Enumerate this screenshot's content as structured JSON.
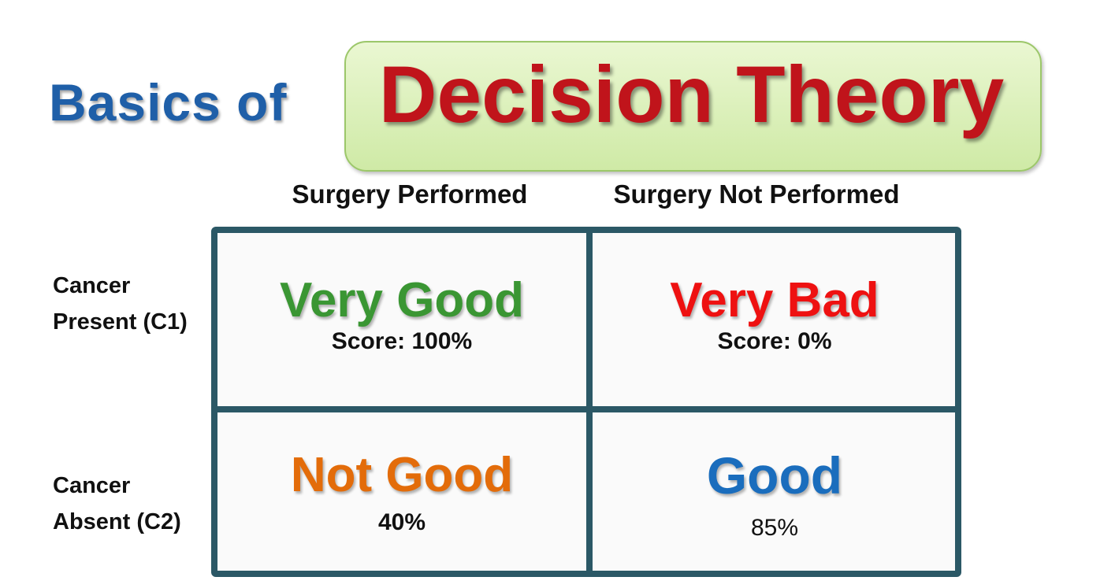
{
  "header": {
    "prefix": "Basics of",
    "title": "Decision Theory"
  },
  "table": {
    "columns": [
      "Surgery Performed",
      "Surgery Not Performed"
    ],
    "rows": [
      {
        "label": [
          "Cancer",
          "Present (C1)"
        ],
        "cells": [
          {
            "verdict": "Very Good",
            "score": "Score: 100%"
          },
          {
            "verdict": "Very Bad",
            "score": "Score: 0%"
          }
        ]
      },
      {
        "label": [
          "Cancer",
          "Absent (C2)"
        ],
        "cells": [
          {
            "verdict": "Not Good",
            "score": "40%"
          },
          {
            "verdict": "Good",
            "score": "85%"
          }
        ]
      }
    ]
  }
}
